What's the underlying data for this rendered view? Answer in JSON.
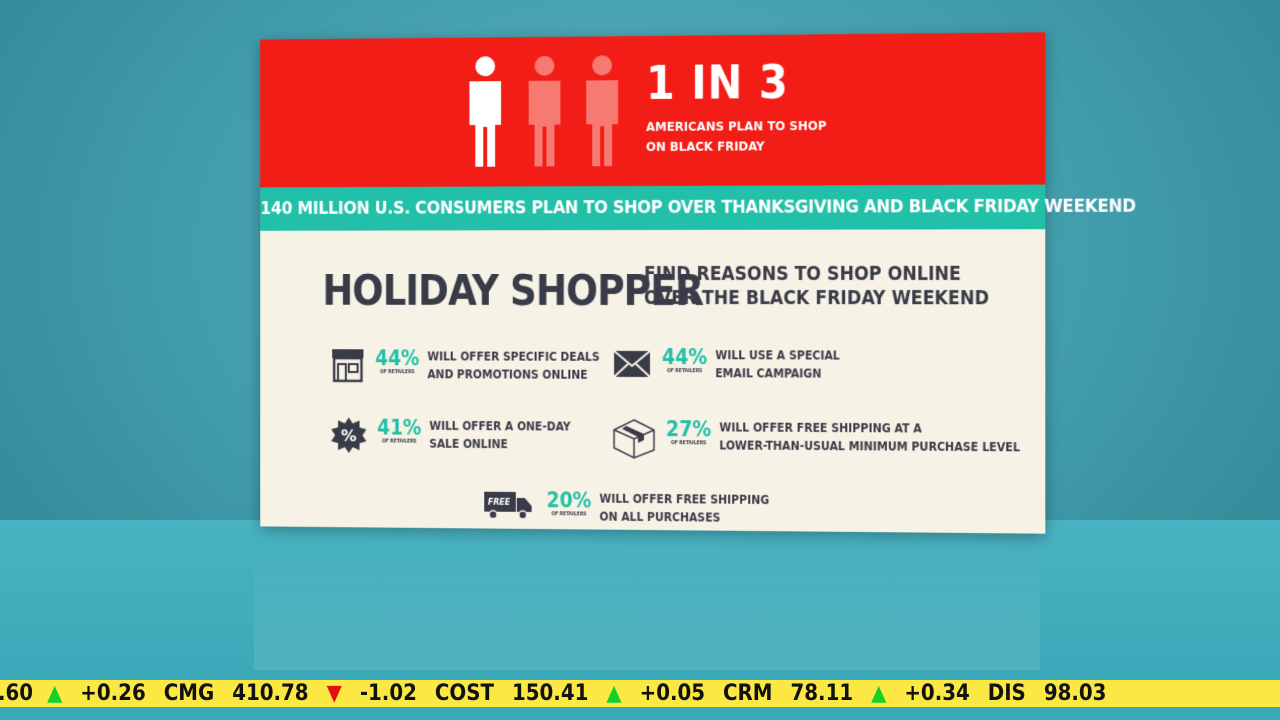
{
  "header": {
    "stat": "1 IN 3",
    "subtitle_line1": "AMERICANS PLAN TO SHOP",
    "subtitle_line2": "ON BLACK FRIDAY",
    "people_highlighted": 1,
    "people_total": 3
  },
  "banner": "140 MILLION U.S. CONSUMERS PLAN TO SHOP OVER THANKSGIVING AND BLACK FRIDAY WEEKEND",
  "title": "HOLIDAY SHOPPER",
  "title_sub_line1": "FIND REASONS TO SHOP ONLINE",
  "title_sub_line2": "OVER THE BLACK FRIDAY WEEKEND",
  "stats": [
    {
      "icon": "storefront-icon",
      "pct": "44%",
      "of": "OF RETAILERS",
      "line1": "WILL OFFER SPECIFIC DEALS",
      "line2": "AND PROMOTIONS ONLINE"
    },
    {
      "icon": "envelope-icon",
      "pct": "44%",
      "of": "OF RETAILERS",
      "line1": "WILL USE A SPECIAL",
      "line2": "EMAIL CAMPAIGN"
    },
    {
      "icon": "percent-badge-icon",
      "pct": "41%",
      "of": "OF RETAILERS",
      "line1": "WILL OFFER A ONE-DAY",
      "line2": "SALE ONLINE"
    },
    {
      "icon": "package-box-icon",
      "pct": "27%",
      "of": "OF RETAILERS",
      "line1": "WILL OFFER FREE SHIPPING AT A",
      "line2": "LOWER-THAN-USUAL MINIMUM PURCHASE LEVEL"
    },
    {
      "icon": "free-delivery-truck-icon",
      "pct": "20%",
      "of": "OF RETAILERS",
      "line1": "WILL OFFER FREE SHIPPING",
      "line2": "ON ALL PURCHASES",
      "truck_label": "FREE"
    }
  ],
  "ticker": [
    {
      "price": ".60",
      "dir": "up",
      "change": "+0.26"
    },
    {
      "symbol": "CMG",
      "price": "410.78",
      "dir": "down",
      "change": "-1.02"
    },
    {
      "symbol": "COST",
      "price": "150.41",
      "dir": "up",
      "change": "+0.05"
    },
    {
      "symbol": "CRM",
      "price": "78.11",
      "dir": "up",
      "change": "+0.34"
    },
    {
      "symbol": "DIS",
      "price": "98.03"
    }
  ],
  "colors": {
    "red": "#f21d16",
    "teal": "#22c0a8",
    "cream": "#f6f2e6",
    "ticker": "#fbe843"
  }
}
